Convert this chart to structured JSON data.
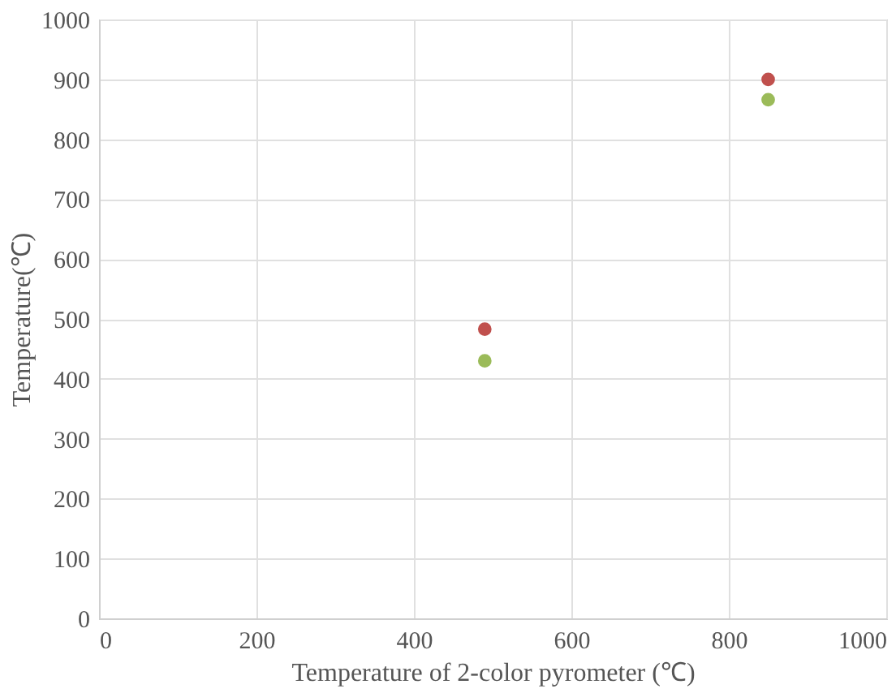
{
  "chart_data": {
    "type": "scatter",
    "xlabel": "Temperature of 2-color pyrometer (℃)",
    "ylabel": "Temperature(℃)",
    "xlim": [
      0,
      1000
    ],
    "xticks": [
      0,
      200,
      400,
      600,
      800,
      1000
    ],
    "ylim": [
      0,
      1000
    ],
    "yticks": [
      0,
      100,
      200,
      300,
      400,
      500,
      600,
      700,
      800,
      900,
      1000
    ],
    "grid": true,
    "marker": "circle",
    "x": [
      490,
      850
    ],
    "series": [
      {
        "color": "#c0504d",
        "values": [
          483,
          900
        ]
      },
      {
        "color": "#9bbb59",
        "values": [
          430,
          866
        ]
      }
    ]
  }
}
